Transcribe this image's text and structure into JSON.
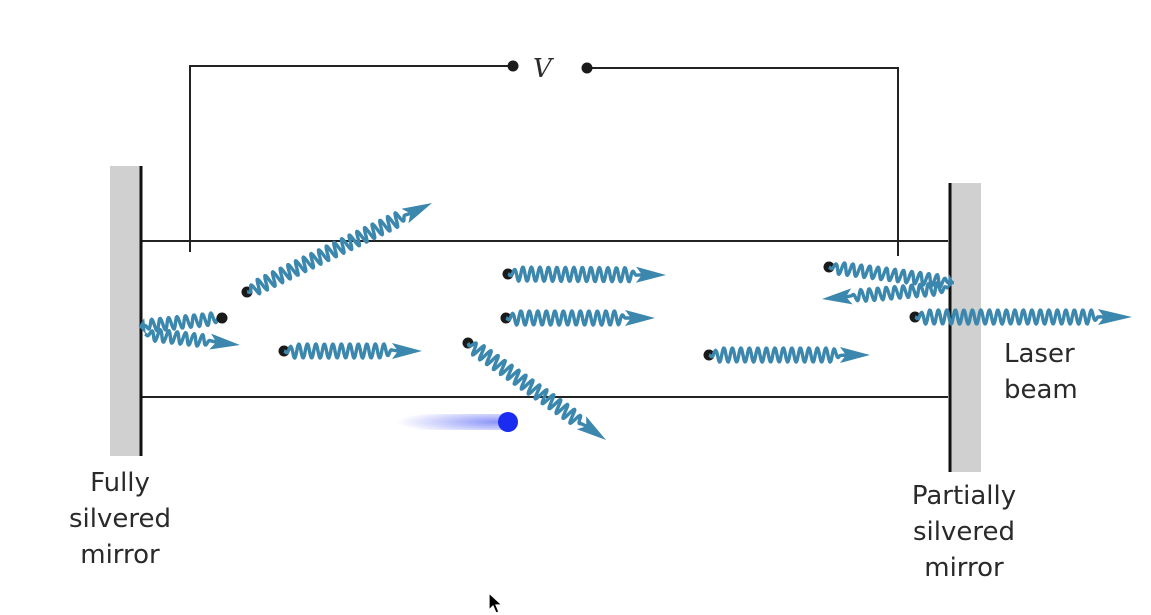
{
  "diagram": {
    "voltage_label": "V",
    "left_mirror_label": [
      "Fully",
      "silvered",
      "mirror"
    ],
    "right_mirror_label": [
      "Partially",
      "silvered",
      "mirror"
    ],
    "output_label": [
      "Laser",
      "beam"
    ]
  },
  "colors": {
    "photon": "#3b87ad",
    "mirror": "#d0d0d0",
    "wire": "#222222",
    "atom": "#1a1a1a",
    "electron": "#1a2cf0"
  },
  "icons": [
    "atom-dot-icon",
    "photon-wave-arrow-icon",
    "electron-icon",
    "mouse-pointer-icon"
  ]
}
